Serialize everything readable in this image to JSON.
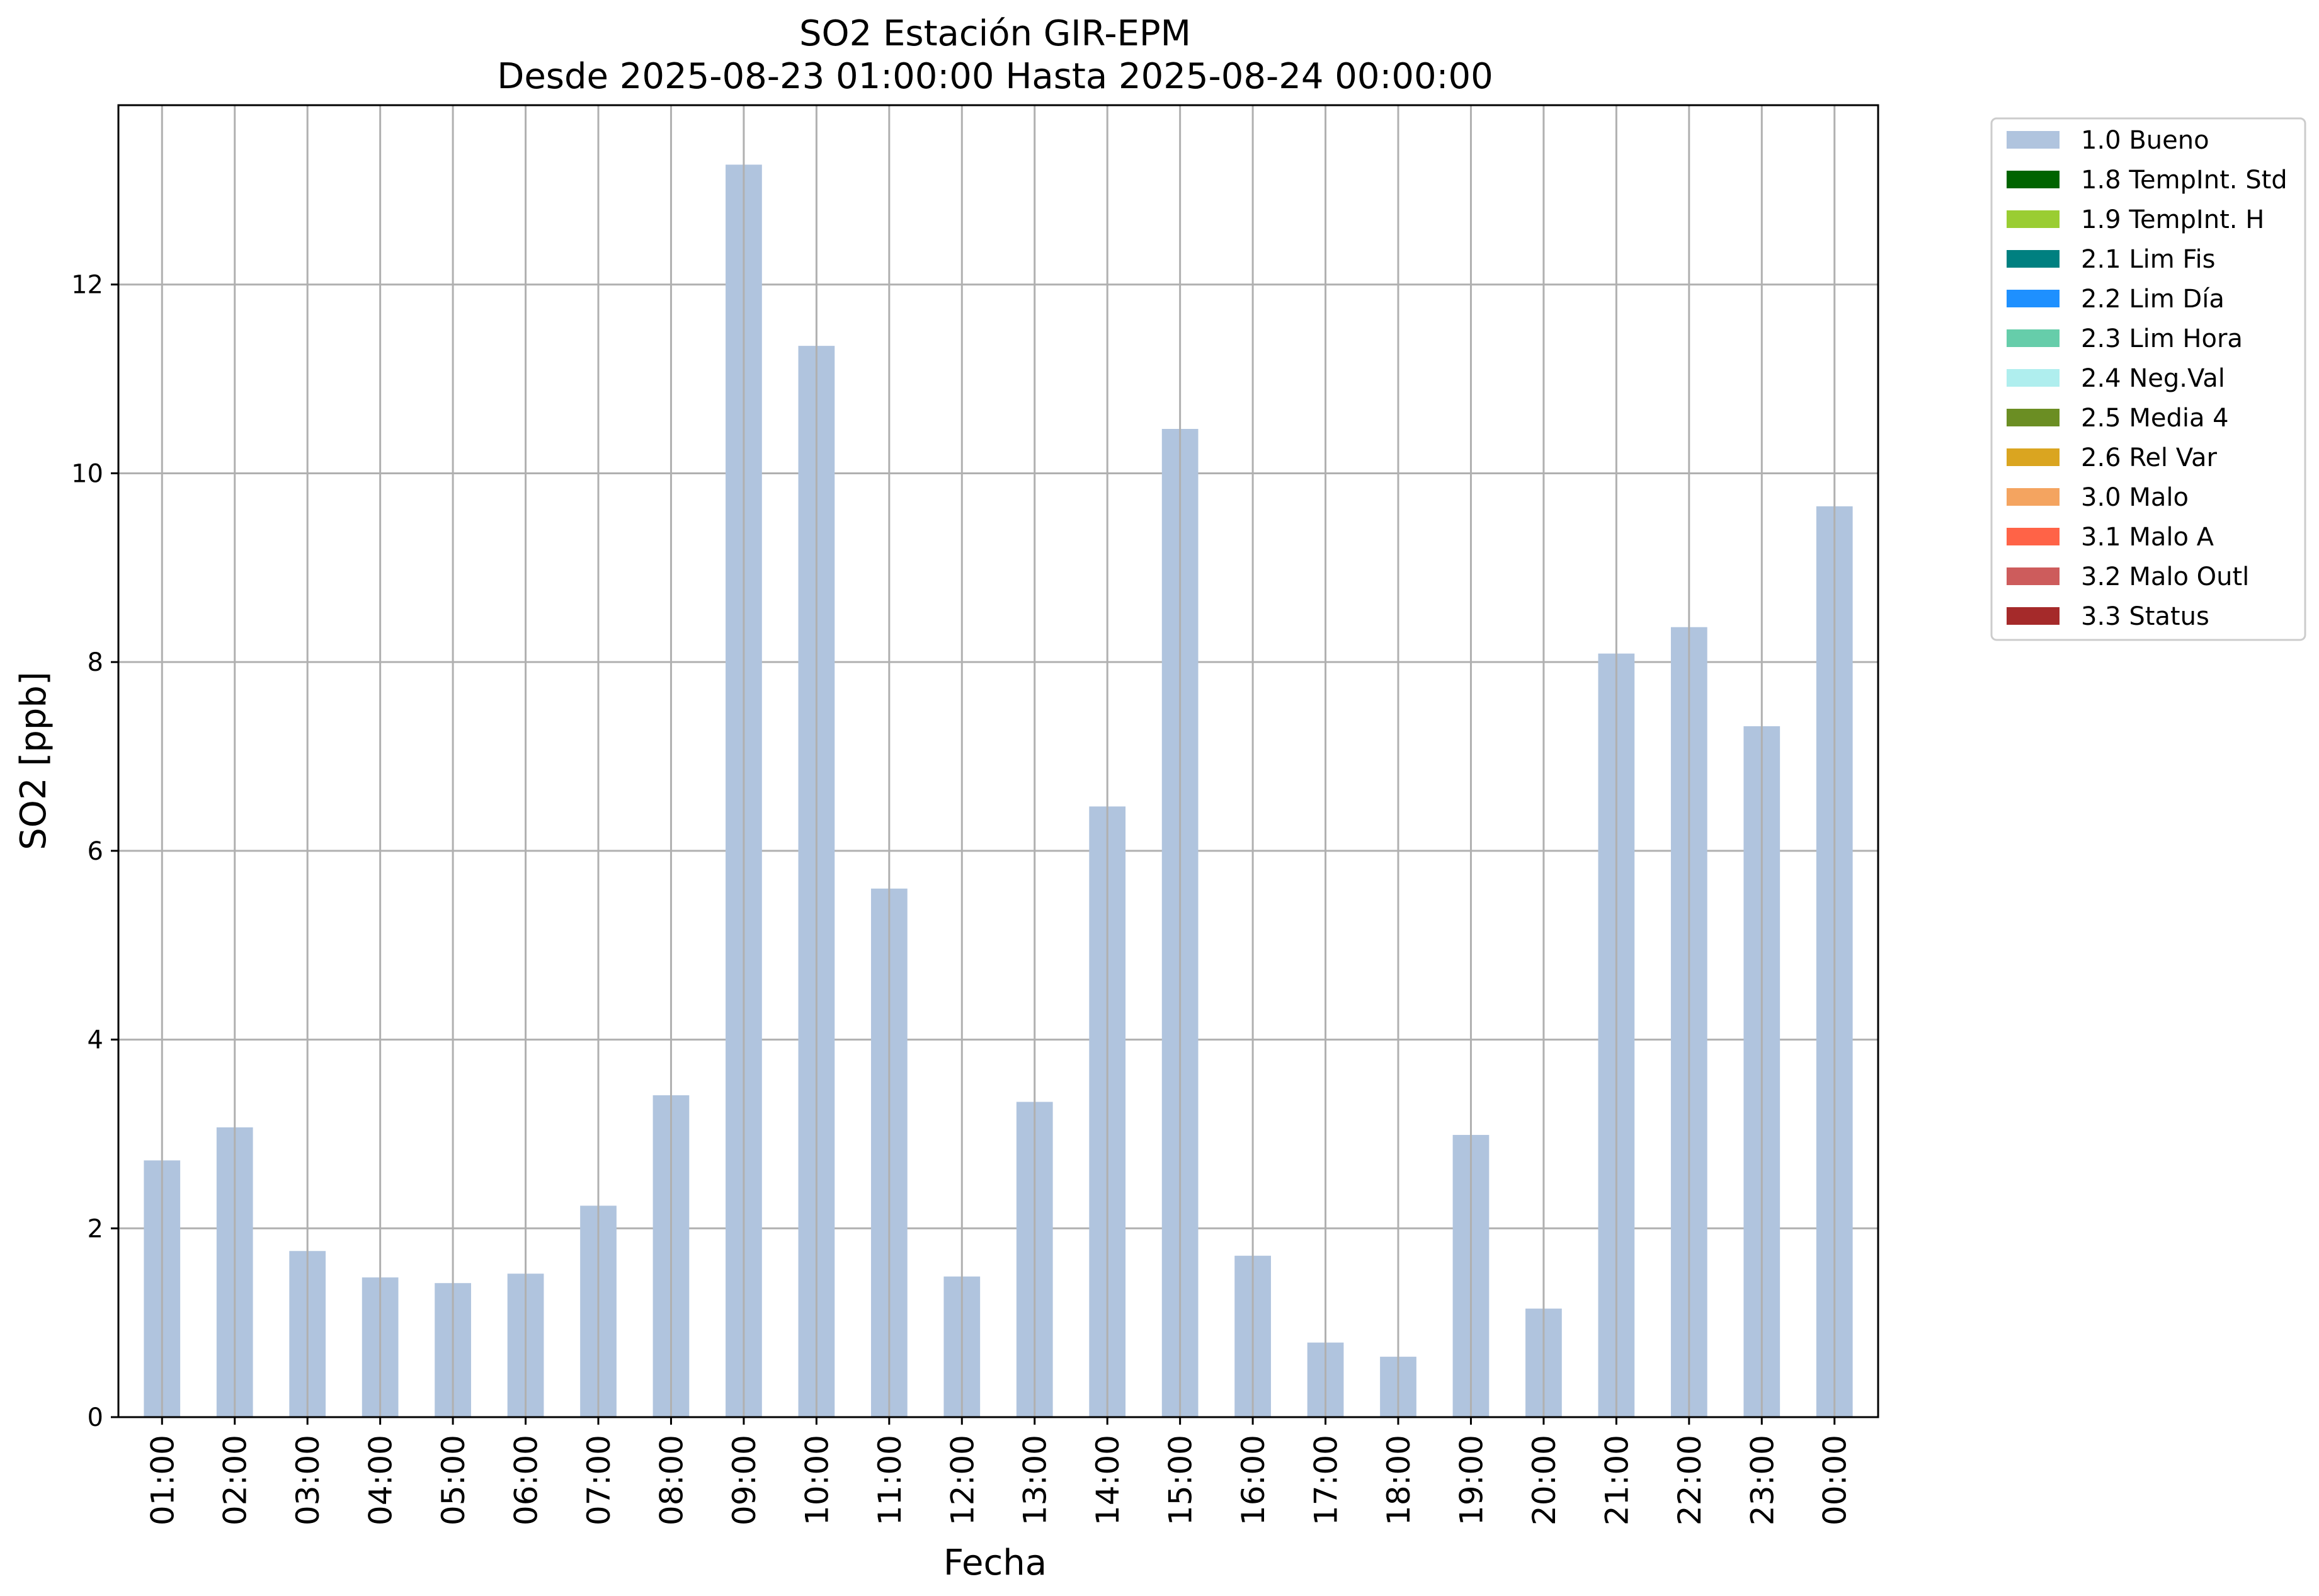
{
  "chart_data": {
    "type": "bar",
    "title": "SO2 Estación GIR-EPM",
    "subtitle": "Desde 2025-08-23 01:00:00 Hasta 2025-08-24 00:00:00",
    "xlabel": "Fecha",
    "ylabel": "SO2 [ppb]",
    "ylim": [
      0,
      13.9
    ],
    "yticks": [
      0,
      2,
      4,
      6,
      8,
      10,
      12
    ],
    "grid": true,
    "legend_position": "outside-top-right",
    "categories": [
      "01:00",
      "02:00",
      "03:00",
      "04:00",
      "05:00",
      "06:00",
      "07:00",
      "08:00",
      "09:00",
      "10:00",
      "11:00",
      "12:00",
      "13:00",
      "14:00",
      "15:00",
      "16:00",
      "17:00",
      "18:00",
      "19:00",
      "20:00",
      "21:00",
      "22:00",
      "23:00",
      "00:00"
    ],
    "series": [
      {
        "name": "1.0 Bueno",
        "color": "#b0c4de",
        "values": [
          2.72,
          3.07,
          1.76,
          1.48,
          1.42,
          1.52,
          2.24,
          3.41,
          13.27,
          11.35,
          5.6,
          1.49,
          3.34,
          6.47,
          10.47,
          1.71,
          0.79,
          0.64,
          2.99,
          1.15,
          8.09,
          8.37,
          7.32,
          9.65
        ]
      }
    ],
    "legend": [
      {
        "label": "1.0 Bueno",
        "color": "#b0c4de"
      },
      {
        "label": "1.8 TempInt. Std",
        "color": "#006400"
      },
      {
        "label": "1.9 TempInt. H",
        "color": "#9acd32"
      },
      {
        "label": "2.1 Lim Fis",
        "color": "#008080"
      },
      {
        "label": "2.2 Lim Día",
        "color": "#1e90ff"
      },
      {
        "label": "2.3 Lim Hora",
        "color": "#66cdaa"
      },
      {
        "label": "2.4 Neg.Val",
        "color": "#afeeee"
      },
      {
        "label": "2.5 Media 4",
        "color": "#6b8e23"
      },
      {
        "label": "2.6 Rel Var",
        "color": "#daa520"
      },
      {
        "label": "3.0 Malo",
        "color": "#f4a460"
      },
      {
        "label": "3.1 Malo A",
        "color": "#ff6347"
      },
      {
        "label": "3.2 Malo Outl",
        "color": "#cd5c5c"
      },
      {
        "label": "3.3 Status",
        "color": "#a52a2a"
      }
    ]
  }
}
